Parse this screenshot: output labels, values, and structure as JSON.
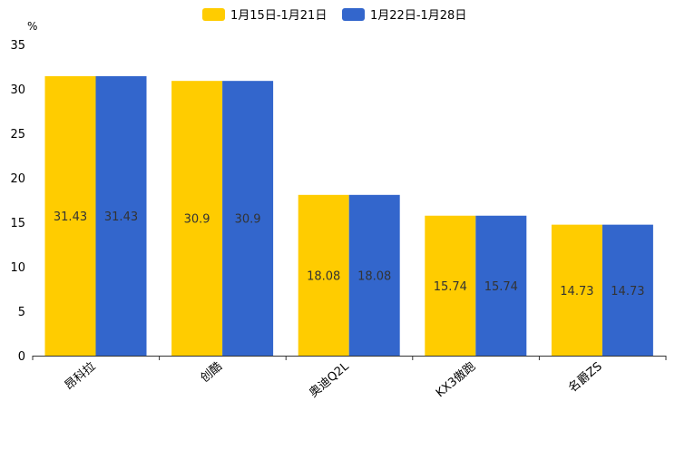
{
  "chart_data": {
    "type": "bar",
    "unit": "%",
    "ylim": [
      0,
      35
    ],
    "yticks": [
      0,
      5,
      10,
      15,
      20,
      25,
      30,
      35
    ],
    "categories": [
      "昂科拉",
      "创酷",
      "奥迪Q2L",
      "KX3傲跑",
      "名爵ZS"
    ],
    "series": [
      {
        "name": "1月15日-1月21日",
        "color": "#ffcc00",
        "values": [
          31.43,
          30.9,
          18.08,
          15.74,
          14.73
        ]
      },
      {
        "name": "1月22日-1月28日",
        "color": "#3366cc",
        "values": [
          31.43,
          30.9,
          18.08,
          15.74,
          14.73
        ]
      }
    ],
    "legend_position": "top-center"
  }
}
